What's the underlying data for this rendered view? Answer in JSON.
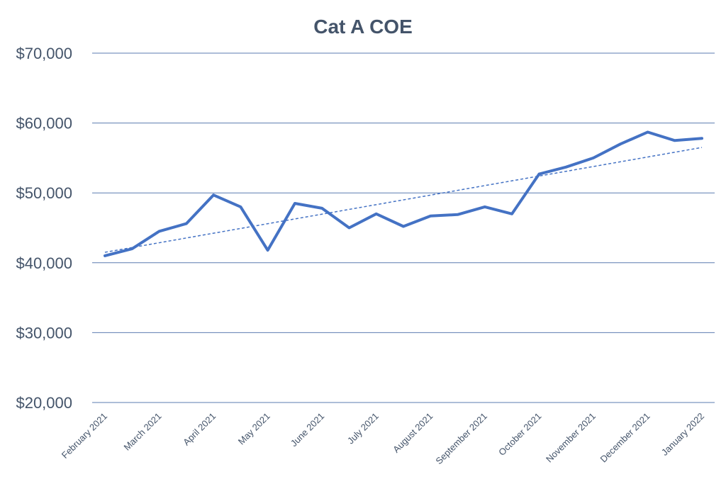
{
  "chart_data": {
    "type": "line",
    "title": "Cat A COE",
    "xlabel": "",
    "ylabel": "",
    "ylim": [
      20000,
      70000
    ],
    "yticks": [
      20000,
      30000,
      40000,
      50000,
      60000,
      70000
    ],
    "ytick_labels": [
      "$20,000",
      "$30,000",
      "$40,000",
      "$50,000",
      "$60,000",
      "$70,000"
    ],
    "x_tick_labels": [
      "February 2021",
      "March 2021",
      "April 2021",
      "May 2021",
      "June 2021",
      "July 2021",
      "August 2021",
      "September 2021",
      "October 2021",
      "November 2021",
      "December 2021",
      "January 2022"
    ],
    "grid": true,
    "series": [
      {
        "name": "Cat A COE",
        "color": "#4472c4",
        "style": "solid",
        "values": [
          41000,
          42000,
          44500,
          45600,
          49700,
          48000,
          41800,
          48500,
          47800,
          45000,
          47000,
          45200,
          46700,
          46900,
          48000,
          47000,
          52700,
          53700,
          55000,
          57000,
          58700,
          57500,
          57800
        ]
      },
      {
        "name": "Linear trend",
        "color": "#4472c4",
        "style": "dashed",
        "values": [
          41500,
          56500
        ]
      }
    ]
  }
}
